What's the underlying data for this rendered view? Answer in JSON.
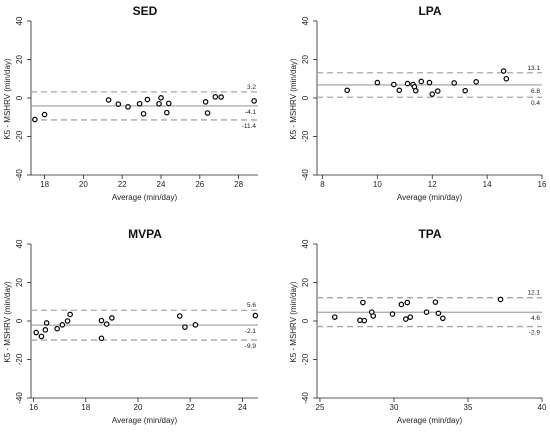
{
  "chart_data": [
    {
      "type": "scatter",
      "title": "SED",
      "xlabel": "Average (min/day)",
      "ylabel": "K5 - MSHRV (min/day)",
      "xlim": [
        17.3,
        29
      ],
      "ylim": [
        -40,
        40
      ],
      "xticks": [
        18,
        20,
        22,
        24,
        26,
        28
      ],
      "yticks": [
        -40,
        -20,
        0,
        20,
        40
      ],
      "mean_diff": -4.1,
      "lower_loa": -11.4,
      "upper_loa": 3.2,
      "mean_label": "-4.1",
      "lower_label": "-11.4",
      "upper_label": "3.2",
      "points": [
        {
          "x": 17.5,
          "y": -11.2
        },
        {
          "x": 18.0,
          "y": -8.6
        },
        {
          "x": 21.3,
          "y": -1.0
        },
        {
          "x": 21.8,
          "y": -3.2
        },
        {
          "x": 22.3,
          "y": -4.6
        },
        {
          "x": 22.9,
          "y": -3.0
        },
        {
          "x": 23.1,
          "y": -8.2
        },
        {
          "x": 23.3,
          "y": -0.8
        },
        {
          "x": 23.9,
          "y": -3.0
        },
        {
          "x": 24.0,
          "y": 0.1
        },
        {
          "x": 24.3,
          "y": -7.6
        },
        {
          "x": 24.4,
          "y": -2.8
        },
        {
          "x": 26.3,
          "y": -2.0
        },
        {
          "x": 26.4,
          "y": -7.8
        },
        {
          "x": 26.8,
          "y": 0.6
        },
        {
          "x": 27.1,
          "y": 0.5
        },
        {
          "x": 28.8,
          "y": -1.5
        }
      ]
    },
    {
      "type": "scatter",
      "title": "LPA",
      "xlabel": "Average (min/day)",
      "ylabel": "K5 - MSHRV (min/day)",
      "xlim": [
        7.8,
        16
      ],
      "ylim": [
        -40,
        40
      ],
      "xticks": [
        8,
        10,
        12,
        14,
        16
      ],
      "yticks": [
        -40,
        -20,
        0,
        20,
        40
      ],
      "mean_diff": 6.8,
      "lower_loa": 0.4,
      "upper_loa": 13.1,
      "mean_label": "6.8",
      "lower_label": "0.4",
      "upper_label": "13.1",
      "points": [
        {
          "x": 8.9,
          "y": 4.0
        },
        {
          "x": 10.0,
          "y": 8.0
        },
        {
          "x": 10.6,
          "y": 7.0
        },
        {
          "x": 10.8,
          "y": 4.0
        },
        {
          "x": 11.1,
          "y": 7.5
        },
        {
          "x": 11.3,
          "y": 7.0
        },
        {
          "x": 11.35,
          "y": 5.8
        },
        {
          "x": 11.4,
          "y": 3.8
        },
        {
          "x": 11.6,
          "y": 8.6
        },
        {
          "x": 11.9,
          "y": 8.0
        },
        {
          "x": 12.0,
          "y": 2.0
        },
        {
          "x": 12.2,
          "y": 3.6
        },
        {
          "x": 12.8,
          "y": 7.8
        },
        {
          "x": 13.2,
          "y": 3.8
        },
        {
          "x": 13.6,
          "y": 8.4
        },
        {
          "x": 14.6,
          "y": 14.0
        },
        {
          "x": 14.7,
          "y": 10.0
        }
      ]
    },
    {
      "type": "scatter",
      "title": "MVPA",
      "xlabel": "Average (min/day)",
      "ylabel": "K5 - MSHRV (min/day)",
      "xlim": [
        15.9,
        24.6
      ],
      "ylim": [
        -40,
        40
      ],
      "xticks": [
        16,
        18,
        20,
        22,
        24
      ],
      "yticks": [
        -40,
        -20,
        0,
        20,
        40
      ],
      "mean_diff": -2.1,
      "lower_loa": -9.9,
      "upper_loa": 5.6,
      "mean_label": "-2.1",
      "lower_label": "-9.9",
      "upper_label": "5.6",
      "points": [
        {
          "x": 16.1,
          "y": -6.0
        },
        {
          "x": 16.3,
          "y": -8.0
        },
        {
          "x": 16.45,
          "y": -4.6
        },
        {
          "x": 16.5,
          "y": -1.0
        },
        {
          "x": 16.9,
          "y": -4.0
        },
        {
          "x": 17.1,
          "y": -2.0
        },
        {
          "x": 17.3,
          "y": 0.0
        },
        {
          "x": 17.4,
          "y": 3.4
        },
        {
          "x": 18.6,
          "y": 0.2
        },
        {
          "x": 18.6,
          "y": -9.0
        },
        {
          "x": 18.8,
          "y": -1.6
        },
        {
          "x": 19.0,
          "y": 1.6
        },
        {
          "x": 21.6,
          "y": 2.6
        },
        {
          "x": 21.8,
          "y": -3.2
        },
        {
          "x": 22.2,
          "y": -2.0
        },
        {
          "x": 24.5,
          "y": 2.8
        }
      ]
    },
    {
      "type": "scatter",
      "title": "TPA",
      "xlabel": "Average (min/day)",
      "ylabel": "K5 - MSHRV (min/day)",
      "xlim": [
        24.8,
        40
      ],
      "ylim": [
        -40,
        40
      ],
      "xticks": [
        25,
        30,
        35,
        40
      ],
      "yticks": [
        -40,
        -20,
        0,
        20,
        40
      ],
      "mean_diff": 4.6,
      "lower_loa": -2.9,
      "upper_loa": 12.1,
      "mean_label": "4.6",
      "lower_label": "-2.9",
      "upper_label": "12.1",
      "points": [
        {
          "x": 26.0,
          "y": 2.0
        },
        {
          "x": 27.7,
          "y": 0.4
        },
        {
          "x": 27.9,
          "y": 9.6
        },
        {
          "x": 28.0,
          "y": 0.2
        },
        {
          "x": 28.5,
          "y": 4.6
        },
        {
          "x": 28.6,
          "y": 2.6
        },
        {
          "x": 29.9,
          "y": 3.6
        },
        {
          "x": 30.5,
          "y": 8.6
        },
        {
          "x": 30.9,
          "y": 9.6
        },
        {
          "x": 30.8,
          "y": 1.0
        },
        {
          "x": 31.1,
          "y": 2.0
        },
        {
          "x": 32.2,
          "y": 4.6
        },
        {
          "x": 32.8,
          "y": 9.8
        },
        {
          "x": 33.0,
          "y": 4.0
        },
        {
          "x": 33.3,
          "y": 1.4
        },
        {
          "x": 37.2,
          "y": 11.2
        }
      ]
    }
  ]
}
